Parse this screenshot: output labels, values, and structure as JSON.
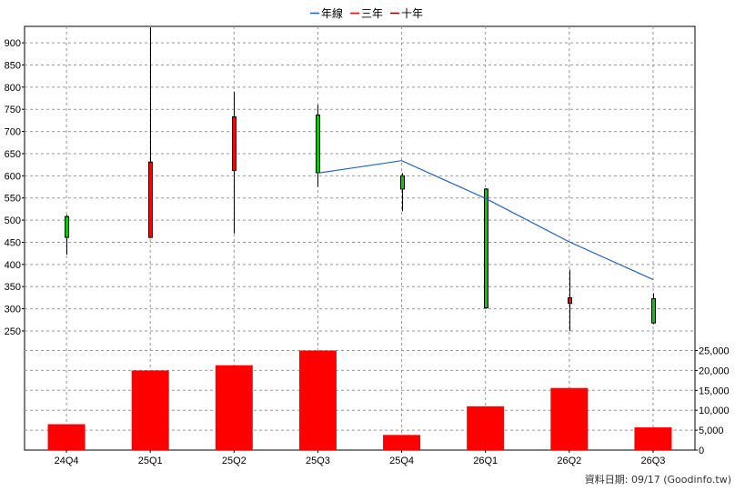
{
  "chart_data": {
    "type": "candlestick",
    "categories": [
      "24Q4",
      "25Q1",
      "25Q2",
      "25Q3",
      "25Q4",
      "26Q1",
      "26Q2",
      "26Q3"
    ],
    "legend": [
      {
        "label": "年線",
        "color": "#1e64c8"
      },
      {
        "label": "三年",
        "color": "#ff0000"
      },
      {
        "label": "十年",
        "color": "#800000"
      }
    ],
    "price_axis": {
      "ticks": [
        250,
        300,
        350,
        400,
        450,
        500,
        550,
        600,
        650,
        700,
        750,
        800,
        850,
        900
      ],
      "ylim": [
        213,
        935
      ]
    },
    "volume_axis": {
      "ticks": [
        0,
        5000,
        10000,
        15000,
        20000,
        25000
      ],
      "tick_labels": [
        "0",
        "5,000",
        "10,000",
        "15,000",
        "20,000",
        "25,000"
      ],
      "ylim": [
        0,
        25800
      ]
    },
    "candles": [
      {
        "open": 461,
        "high": 512,
        "low": 422,
        "close": 508,
        "color": "#00cc00"
      },
      {
        "open": 461,
        "high": 935,
        "low": 460,
        "close": 631,
        "color": "#ff0000"
      },
      {
        "open": 612,
        "high": 790,
        "low": 470,
        "close": 733,
        "color": "#ff0000"
      },
      {
        "open": 607,
        "high": 760,
        "low": 575,
        "close": 737,
        "color": "#00cc00"
      },
      {
        "open": 600,
        "high": 606,
        "low": 520,
        "close": 570,
        "color": "#00cc00"
      },
      {
        "open": 302,
        "high": 572,
        "low": 300,
        "close": 570,
        "color": "#00cc00"
      },
      {
        "open": 325,
        "high": 388,
        "low": 250,
        "close": 312,
        "color": "#ff0000"
      },
      {
        "open": 323,
        "high": 335,
        "low": 265,
        "close": 268,
        "color": "#00cc00"
      }
    ],
    "year_line": {
      "name": "年線",
      "start_index": 3,
      "values": [
        606,
        634,
        549,
        451,
        366
      ],
      "color": "#1e64c8"
    },
    "volume": {
      "values": [
        6500,
        20000,
        21300,
        25000,
        3800,
        11000,
        15600,
        5700
      ],
      "color": "#ff0000"
    },
    "grid": true
  },
  "footer": {
    "text": "資料日期: 09/17  (Goodinfo.tw)"
  }
}
